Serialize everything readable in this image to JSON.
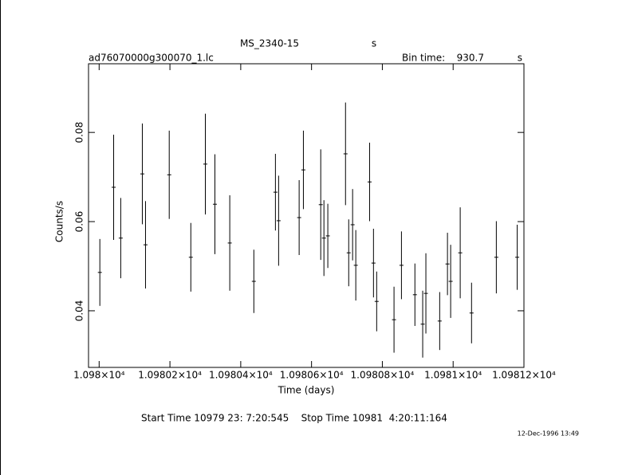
{
  "chart_data": {
    "type": "errorbar",
    "title": "MS_2340-15",
    "title_unit": "s",
    "subtitle": "ad76070000g300070_1.lc",
    "bin_time_label": "Bin time:",
    "bin_time": 930.7,
    "bin_time_unit": "s",
    "xlabel": "Time (days)",
    "ylabel": "Counts/s",
    "footer": "Start Time 10979 23: 7:20:545    Stop Time 10981  4:20:11:164",
    "date": "12-Dec-1996 13:49",
    "color": "#000000",
    "xlim": [
      10979.97,
      10981.2
    ],
    "ylim": [
      0.0273,
      0.0954
    ],
    "xticks": [
      {
        "value": 10980,
        "label": "1.098×10⁴"
      },
      {
        "value": 10980.2,
        "label": "1.09802×10⁴"
      },
      {
        "value": 10980.4,
        "label": "1.09804×10⁴"
      },
      {
        "value": 10980.6,
        "label": "1.09806×10⁴"
      },
      {
        "value": 10980.8,
        "label": "1.09808×10⁴"
      },
      {
        "value": 10981,
        "label": "1.0981×10⁴"
      },
      {
        "value": 10981.2,
        "label": "1.09812×10⁴"
      }
    ],
    "yticks": [
      0.04,
      0.06,
      0.08
    ],
    "x": [
      10980.002,
      10980.041,
      10980.061,
      10980.122,
      10980.131,
      10980.198,
      10980.259,
      10980.3,
      10980.327,
      10980.369,
      10980.437,
      10980.498,
      10980.507,
      10980.565,
      10980.577,
      10980.626,
      10980.635,
      10980.646,
      10980.696,
      10980.705,
      10980.716,
      10980.725,
      10980.764,
      10980.775,
      10980.784,
      10980.833,
      10980.854,
      10980.892,
      10980.914,
      10980.923,
      10980.962,
      10980.984,
      10980.993,
      10981.02,
      10981.052,
      10981.122,
      10981.181
    ],
    "values": [
      0.0486,
      0.0677,
      0.0563,
      0.0707,
      0.0548,
      0.0705,
      0.052,
      0.0729,
      0.0639,
      0.0552,
      0.0466,
      0.0666,
      0.0602,
      0.0609,
      0.0716,
      0.0638,
      0.0563,
      0.0568,
      0.0752,
      0.053,
      0.0593,
      0.0502,
      0.0689,
      0.0507,
      0.0421,
      0.038,
      0.0502,
      0.0436,
      0.037,
      0.0439,
      0.0377,
      0.0505,
      0.0466,
      0.053,
      0.0395,
      0.052,
      0.052
    ],
    "errors": [
      0.0075,
      0.0118,
      0.009,
      0.0113,
      0.0098,
      0.0099,
      0.0077,
      0.0113,
      0.0112,
      0.0107,
      0.0071,
      0.0086,
      0.0101,
      0.0084,
      0.0088,
      0.0124,
      0.0085,
      0.0072,
      0.0115,
      0.0075,
      0.008,
      0.0079,
      0.0088,
      0.0077,
      0.0067,
      0.0074,
      0.0076,
      0.007,
      0.0075,
      0.009,
      0.0065,
      0.007,
      0.0082,
      0.0102,
      0.0068,
      0.0081,
      0.0073
    ]
  }
}
